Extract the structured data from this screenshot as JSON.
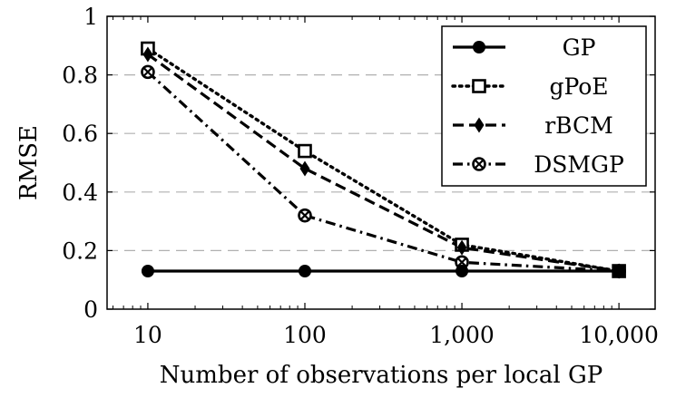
{
  "chart_data": {
    "type": "line",
    "xlabel": "Number of observations per local GP",
    "ylabel": "RMSE",
    "x": [
      10,
      100,
      1000,
      10000
    ],
    "x_tick_labels": [
      "10",
      "100",
      "1,000",
      "10,000"
    ],
    "xscale": "log",
    "xlim": [
      5.5,
      17000
    ],
    "ylim": [
      0,
      1
    ],
    "y_ticks": [
      0,
      0.2,
      0.4,
      0.6,
      0.8,
      1
    ],
    "y_tick_labels": [
      "0",
      "0.2",
      "0.4",
      "0.6",
      "0.8",
      "1"
    ],
    "grid": "horizontal-dashed",
    "legend_position": "top-right",
    "series": [
      {
        "name": "GP",
        "values": [
          0.13,
          0.13,
          0.13,
          0.13
        ],
        "line": "solid",
        "marker": "filled-circle"
      },
      {
        "name": "gPoE",
        "values": [
          0.89,
          0.54,
          0.22,
          0.13
        ],
        "line": "dotted",
        "marker": "open-square"
      },
      {
        "name": "rBCM",
        "values": [
          0.87,
          0.48,
          0.21,
          0.13
        ],
        "line": "dashed",
        "marker": "filled-diamond"
      },
      {
        "name": "DSMGP",
        "values": [
          0.81,
          0.32,
          0.16,
          0.13
        ],
        "line": "dash-dot",
        "marker": "circled-cross"
      }
    ]
  }
}
